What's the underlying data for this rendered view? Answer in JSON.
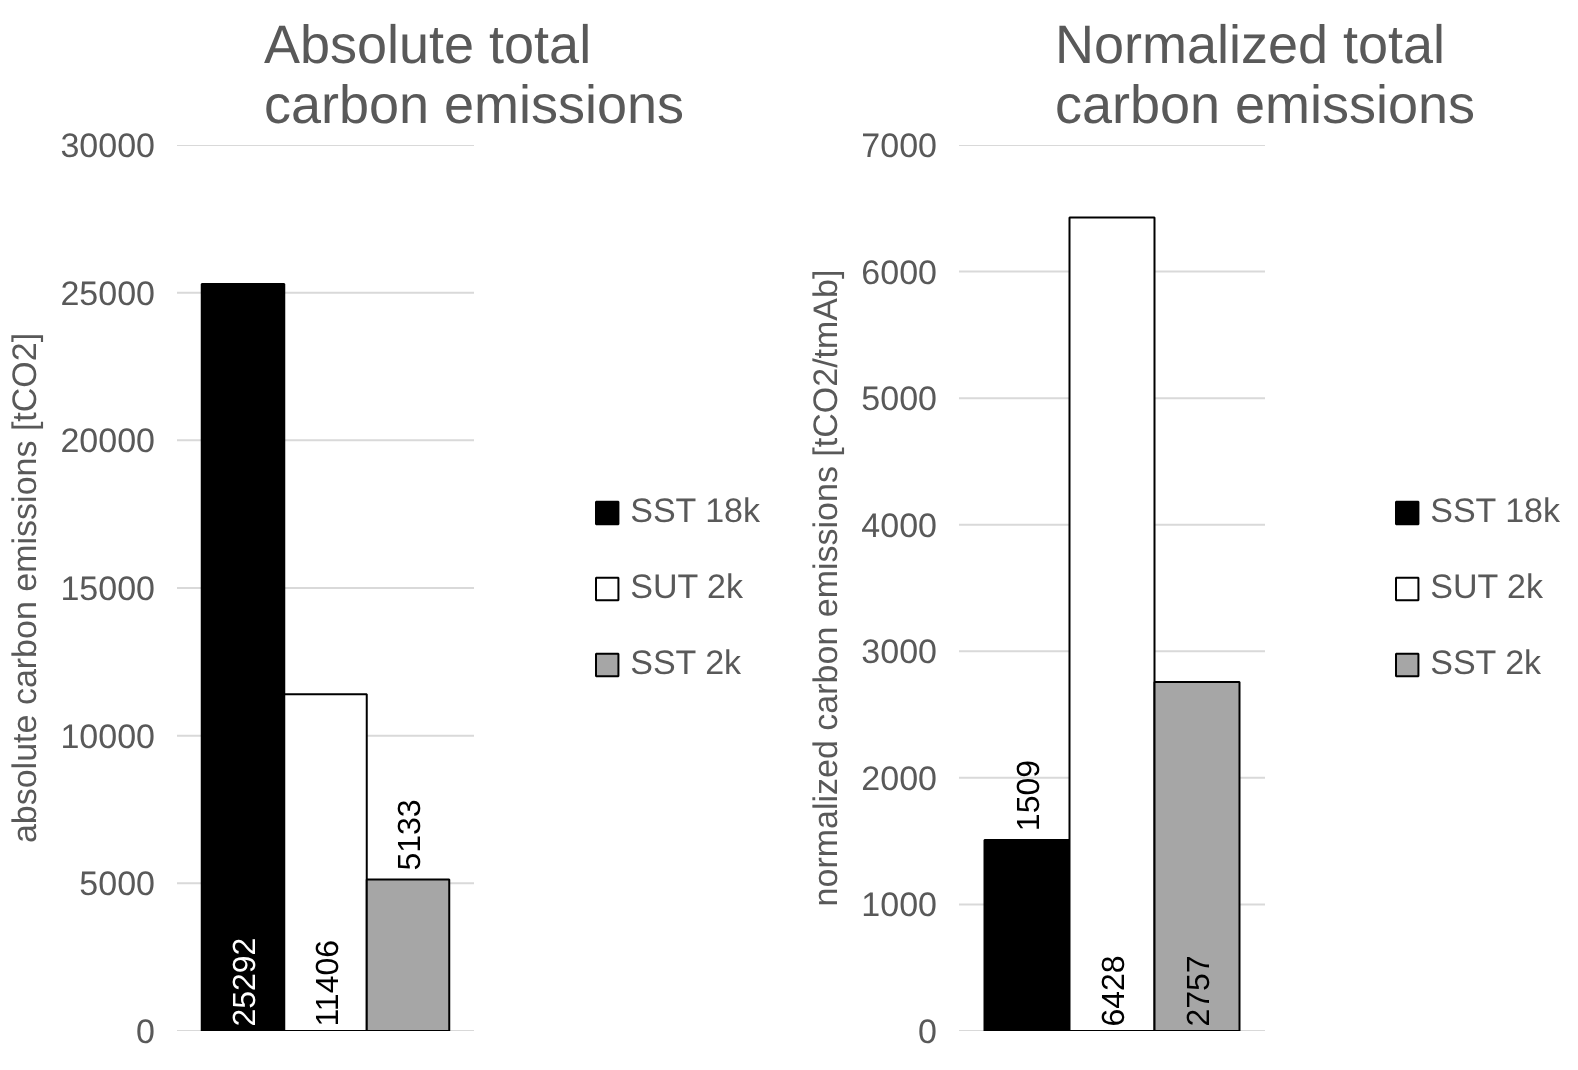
{
  "chart_data": [
    {
      "type": "bar",
      "title": "Absolute total carbon emissions",
      "ylabel": "absolute carbon emissions [tCO2]",
      "categories": [
        null
      ],
      "ylim": [
        0,
        30000
      ],
      "yticks": [
        0,
        5000,
        10000,
        15000,
        20000,
        25000,
        30000
      ],
      "grid": "y",
      "legend": "right",
      "data_labels": true,
      "series": [
        {
          "name": "SST 18k",
          "color": "#000000",
          "values": [
            25292
          ]
        },
        {
          "name": "SUT 2k",
          "color": "#ffffff",
          "values": [
            11406
          ]
        },
        {
          "name": "SST 2k",
          "color": "#a6a6a6",
          "values": [
            5133
          ]
        }
      ]
    },
    {
      "type": "bar",
      "title": "Normalized total carbon emissions",
      "ylabel": "normalized carbon emissions [tCO2/tmAb]",
      "categories": [
        null
      ],
      "ylim": [
        0,
        7000
      ],
      "yticks": [
        0,
        1000,
        2000,
        3000,
        4000,
        5000,
        6000,
        7000
      ],
      "grid": "y",
      "legend": "right",
      "data_labels": true,
      "series": [
        {
          "name": "SST 18k",
          "color": "#000000",
          "values": [
            1509
          ]
        },
        {
          "name": "SUT 2k",
          "color": "#ffffff",
          "values": [
            6428
          ]
        },
        {
          "name": "SST 2k",
          "color": "#a6a6a6",
          "values": [
            2757
          ]
        }
      ]
    }
  ]
}
